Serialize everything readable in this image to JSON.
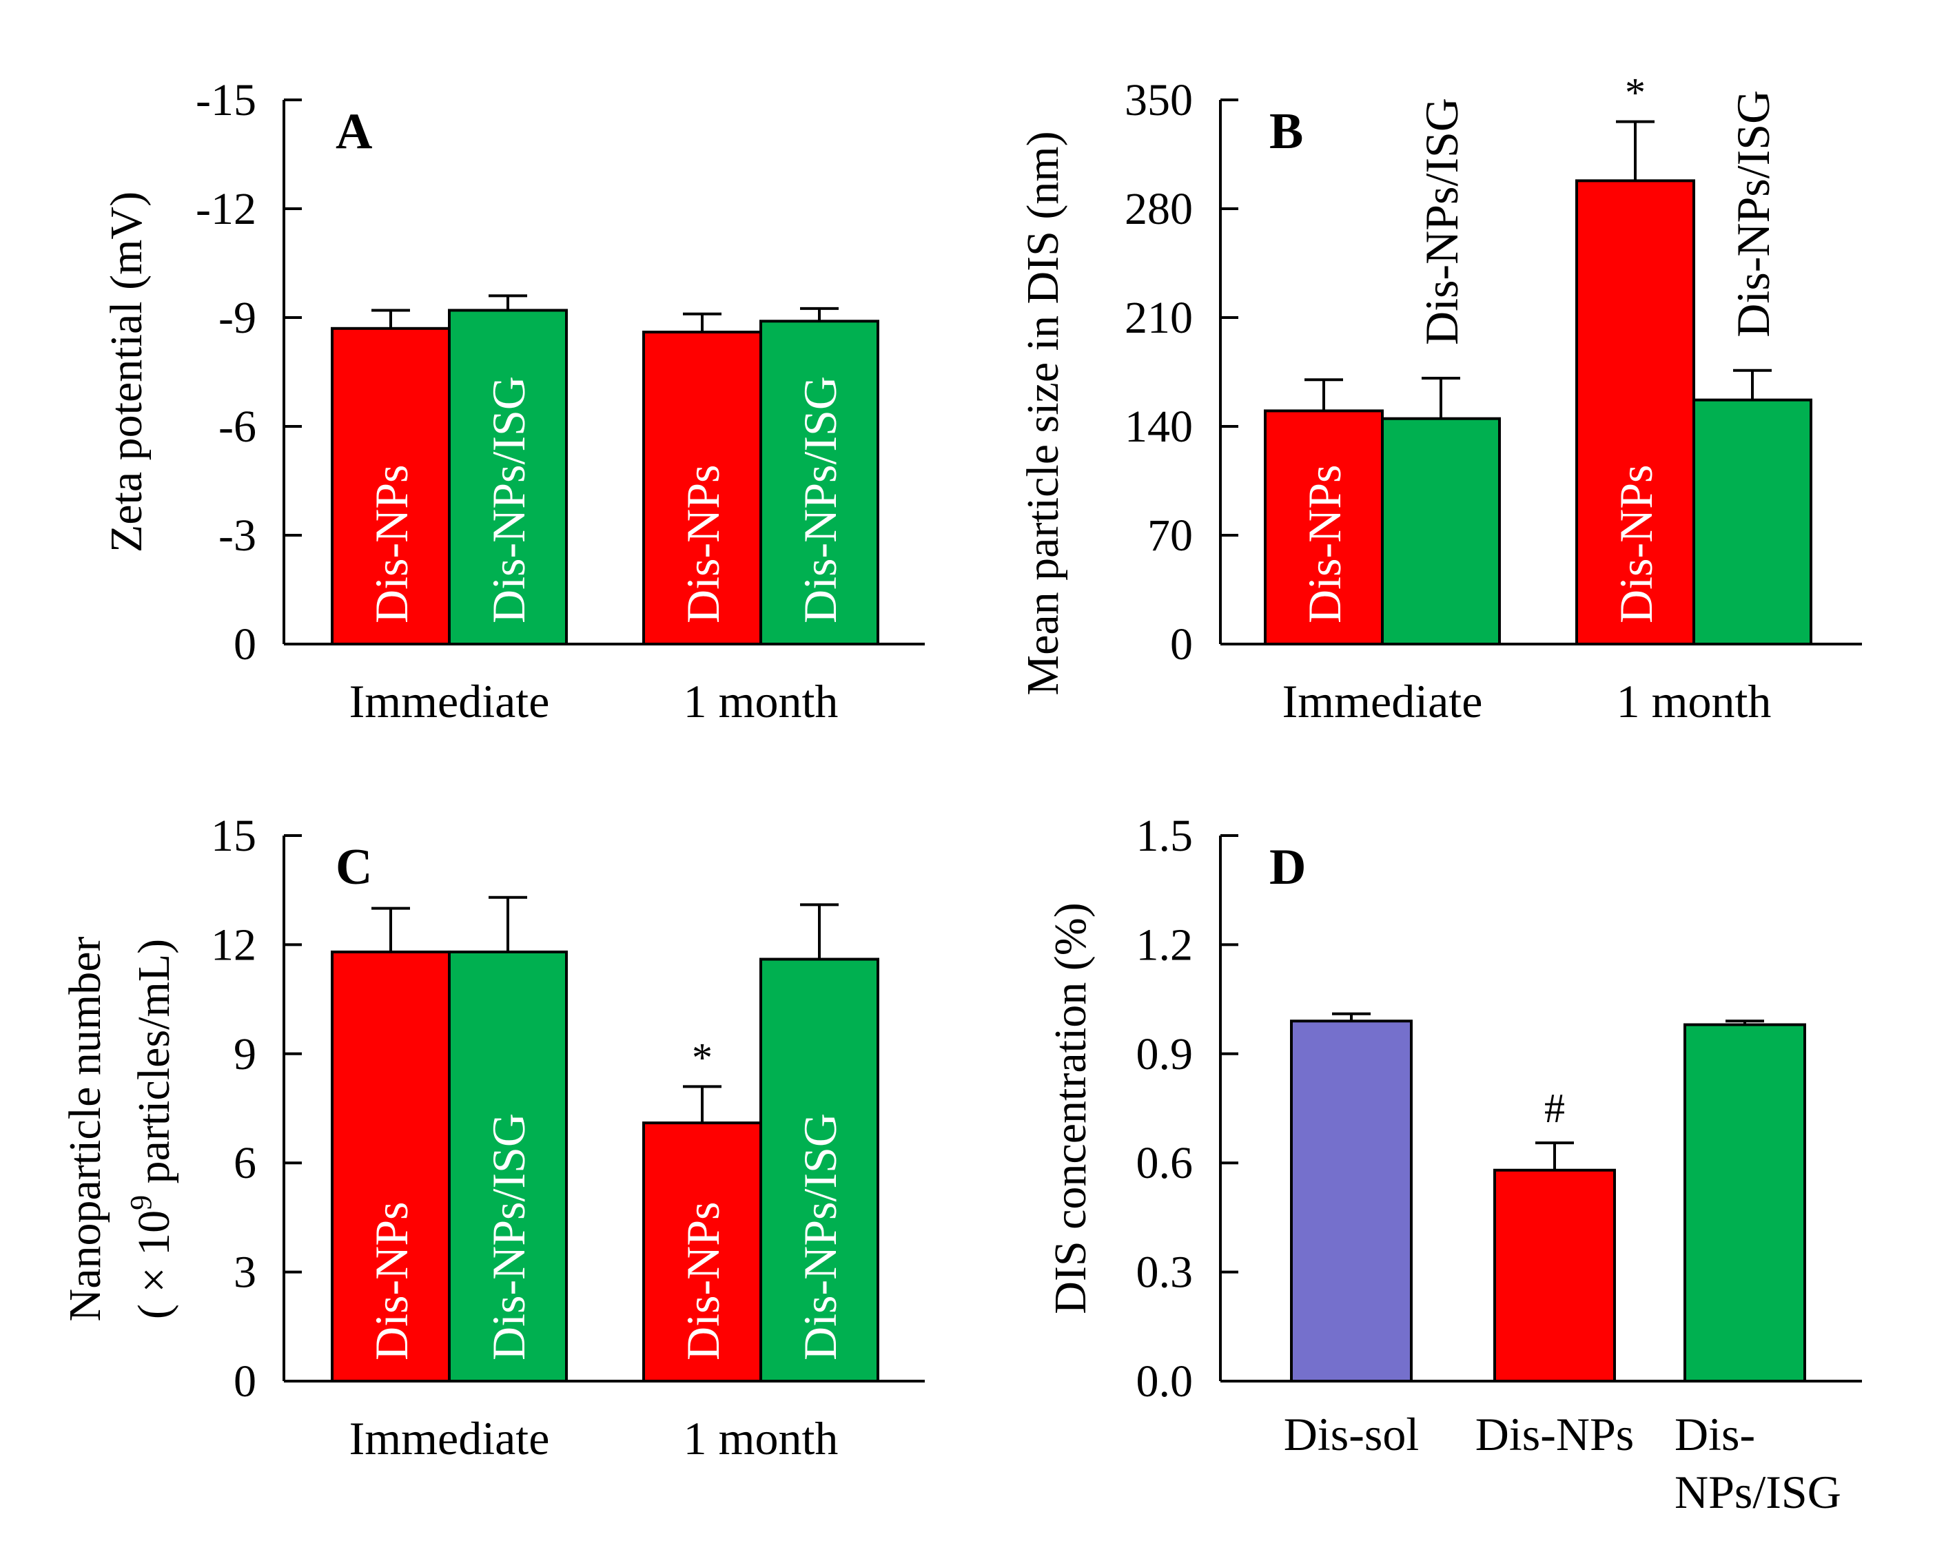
{
  "colors": {
    "red": "#ff0000",
    "green": "#00b050",
    "purple": "#7570cc"
  },
  "chart_data": [
    {
      "panel": "A",
      "type": "bar",
      "ylabel": "Zeta potential (mV)",
      "ylim": [
        0,
        -15
      ],
      "yticks": [
        0,
        -3,
        -6,
        -9,
        -12,
        -15
      ],
      "ytick_labels": [
        "0",
        "-3",
        "-6",
        "-9",
        "-12",
        "-15"
      ],
      "categories": [
        "Immediate",
        "1 month"
      ],
      "series": [
        {
          "name": "Dis-NPs",
          "color": "red",
          "values": [
            -8.7,
            -8.6
          ],
          "errors": [
            0.5,
            0.5
          ]
        },
        {
          "name": "Dis-NPs/ISG",
          "color": "green",
          "values": [
            -9.2,
            -8.9
          ],
          "errors": [
            0.4,
            0.35
          ]
        }
      ],
      "annotations": [],
      "bar_labels_inside": true
    },
    {
      "panel": "B",
      "type": "bar",
      "ylabel": "Mean particle  size in DIS (nm)",
      "ylim": [
        0,
        350
      ],
      "yticks": [
        0,
        70,
        140,
        210,
        280,
        350
      ],
      "ytick_labels": [
        "0",
        "70",
        "140",
        "210",
        "280",
        "350"
      ],
      "categories": [
        "Immediate",
        "1 month"
      ],
      "series": [
        {
          "name": "Dis-NPs",
          "color": "red",
          "values": [
            150,
            298
          ],
          "errors": [
            20,
            38
          ]
        },
        {
          "name": "Dis-NPs/ISG",
          "color": "green",
          "values": [
            145,
            157
          ],
          "errors": [
            26,
            19
          ]
        }
      ],
      "annotations": [
        {
          "text": "*",
          "category": 1,
          "series": 0
        }
      ],
      "bar_labels_inside": false
    },
    {
      "panel": "C",
      "type": "bar",
      "ylabel_line1": "Nanoparticle  number",
      "ylabel_line2_prefix": "( × 10",
      "ylabel_line2_sup": "9",
      "ylabel_line2_suffix": " particles/mL)",
      "ylim": [
        0,
        15
      ],
      "yticks": [
        0,
        3,
        6,
        9,
        12,
        15
      ],
      "ytick_labels": [
        "0",
        "3",
        "6",
        "9",
        "12",
        "15"
      ],
      "categories": [
        "Immediate",
        "1 month"
      ],
      "series": [
        {
          "name": "Dis-NPs",
          "color": "red",
          "values": [
            11.8,
            7.1
          ],
          "errors": [
            1.2,
            1.0
          ]
        },
        {
          "name": "Dis-NPs/ISG",
          "color": "green",
          "values": [
            11.8,
            11.6
          ],
          "errors": [
            1.5,
            1.5
          ]
        }
      ],
      "annotations": [
        {
          "text": "*",
          "category": 1,
          "series": 0
        }
      ],
      "bar_labels_inside": true
    },
    {
      "panel": "D",
      "type": "bar",
      "ylabel": "DIS concentration  (%)",
      "ylim": [
        0,
        1.5
      ],
      "yticks": [
        0,
        0.3,
        0.6,
        0.9,
        1.2,
        1.5
      ],
      "ytick_labels": [
        "0.0",
        "0.3",
        "0.6",
        "0.9",
        "1.2",
        "1.5"
      ],
      "categories": [
        "Dis-sol",
        "Dis-NPs",
        "Dis-\nNPs/ISG"
      ],
      "values": [
        0.99,
        0.58,
        0.98
      ],
      "errors": [
        0.02,
        0.075,
        0.01
      ],
      "bar_colors": [
        "purple",
        "red",
        "green"
      ],
      "annotations": [
        {
          "text": "#",
          "category": 1
        }
      ]
    }
  ]
}
